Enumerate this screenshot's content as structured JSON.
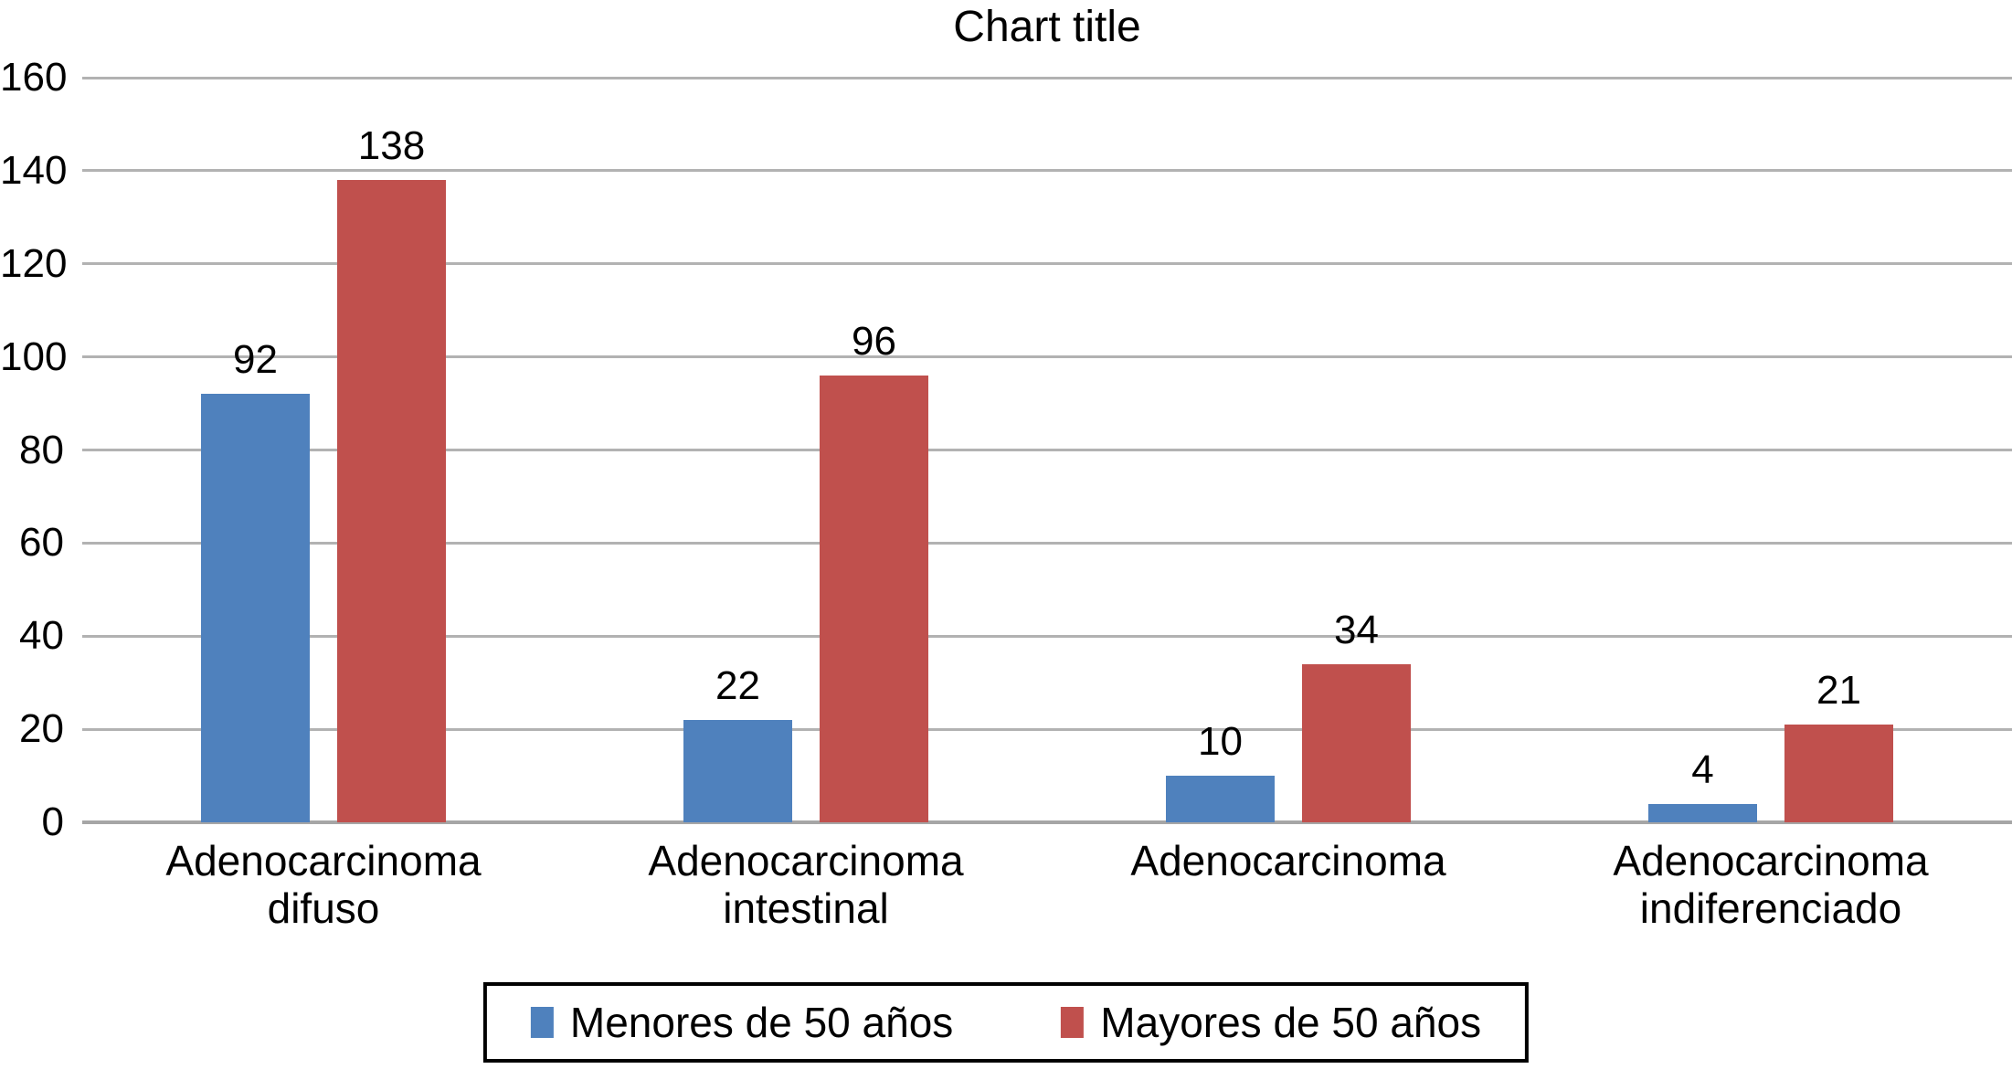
{
  "chart_data": {
    "type": "bar",
    "title": "Chart title",
    "categories": [
      {
        "label_lines": [
          "Adenocarcinoma",
          "difuso"
        ]
      },
      {
        "label_lines": [
          "Adenocarcinoma",
          "intestinal"
        ]
      },
      {
        "label_lines": [
          "Adenocarcinoma"
        ]
      },
      {
        "label_lines": [
          "Adenocarcinoma",
          "indiferenciado"
        ]
      }
    ],
    "series": [
      {
        "name": "Menores de 50 años",
        "color": "#4F81BD",
        "values": [
          92,
          22,
          10,
          4
        ]
      },
      {
        "name": "Mayores de 50 años",
        "color": "#C0504D",
        "values": [
          138,
          96,
          34,
          21
        ]
      }
    ],
    "y_axis": {
      "min": 0,
      "max": 160,
      "tick_step": 20,
      "ticks": [
        0,
        20,
        40,
        60,
        80,
        100,
        120,
        140,
        160
      ]
    },
    "grid": true,
    "gridline_color": "#B2B2B2",
    "axis_line_color": "#A6A6A6",
    "data_labels": true,
    "legend": {
      "position": "bottom",
      "border_color": "#000000"
    },
    "text_color": "#000000",
    "background_color": "#FFFFFF"
  }
}
